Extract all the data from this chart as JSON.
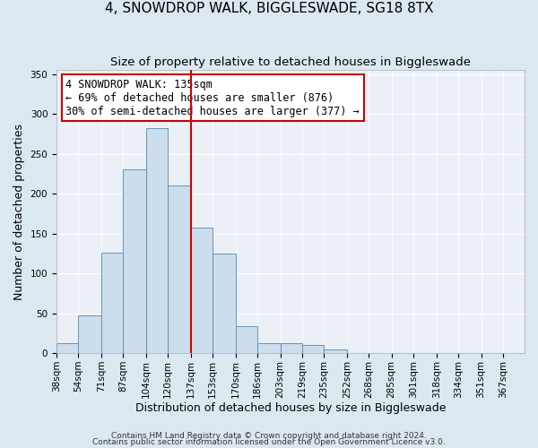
{
  "title": "4, SNOWDROP WALK, BIGGLESWADE, SG18 8TX",
  "subtitle": "Size of property relative to detached houses in Biggleswade",
  "xlabel": "Distribution of detached houses by size in Biggleswade",
  "ylabel": "Number of detached properties",
  "bin_labels": [
    "38sqm",
    "54sqm",
    "71sqm",
    "87sqm",
    "104sqm",
    "120sqm",
    "137sqm",
    "153sqm",
    "170sqm",
    "186sqm",
    "203sqm",
    "219sqm",
    "235sqm",
    "252sqm",
    "268sqm",
    "285sqm",
    "301sqm",
    "318sqm",
    "334sqm",
    "351sqm",
    "367sqm"
  ],
  "bin_edges": [
    38,
    54,
    71,
    87,
    104,
    120,
    137,
    153,
    170,
    186,
    203,
    219,
    235,
    252,
    268,
    285,
    301,
    318,
    334,
    351,
    367
  ],
  "counts": [
    12,
    47,
    126,
    230,
    282,
    210,
    157,
    125,
    34,
    13,
    13,
    10,
    5,
    0,
    0,
    0,
    0,
    0,
    0,
    0
  ],
  "bar_color": "#ccdded",
  "bar_edge_color": "#5588aa",
  "vline_x": 137,
  "vline_color": "#cc0000",
  "annotation_text": "4 SNOWDROP WALK: 135sqm\n← 69% of detached houses are smaller (876)\n30% of semi-detached houses are larger (377) →",
  "annotation_box_color": "#ffffff",
  "annotation_box_edge": "#cc0000",
  "ylim": [
    0,
    355
  ],
  "yticks": [
    0,
    50,
    100,
    150,
    200,
    250,
    300,
    350
  ],
  "footer1": "Contains HM Land Registry data © Crown copyright and database right 2024.",
  "footer2": "Contains public sector information licensed under the Open Government Licence v3.0.",
  "bg_color": "#dce8f0",
  "plot_bg_color": "#eaf0f6",
  "title_fontsize": 11,
  "subtitle_fontsize": 9.5,
  "axis_label_fontsize": 9,
  "tick_fontsize": 7.5,
  "annotation_fontsize": 8.5,
  "footer_fontsize": 6.5
}
